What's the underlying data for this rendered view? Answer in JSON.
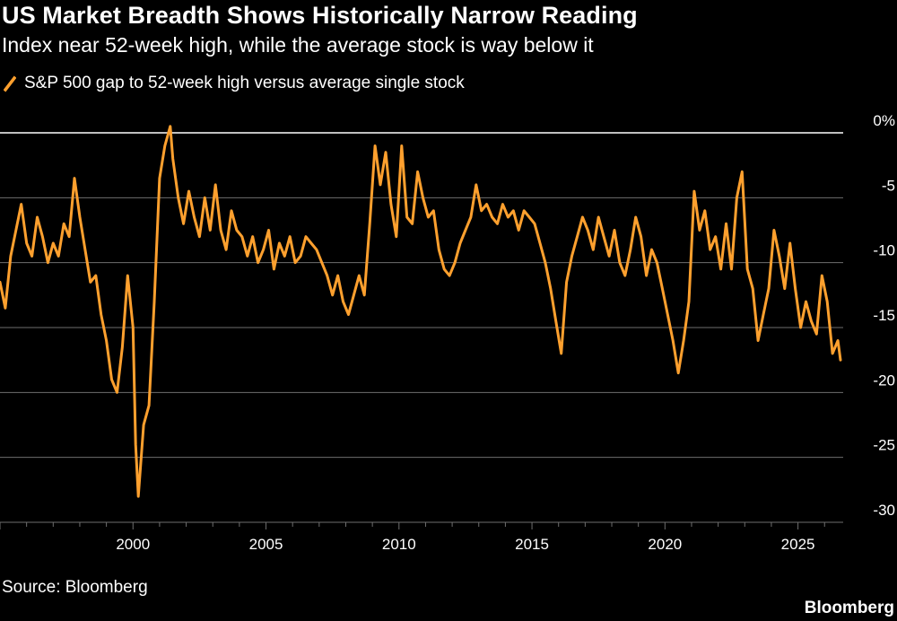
{
  "header": {
    "title": "US Market Breadth Shows Historically Narrow Reading",
    "subtitle": "Index near 52-week high, while the average stock is way below it"
  },
  "legend": {
    "label": "S&P 500 gap to 52-week high versus average single stock"
  },
  "footer": {
    "source": "Source: Bloomberg",
    "brand": "Bloomberg"
  },
  "colors": {
    "background": "#000000",
    "series": "#fea02e",
    "grid": "#6e6e6e",
    "zero_line": "#ffffff",
    "text": "#ffffff"
  },
  "chart_data": {
    "type": "line",
    "title": "US Market Breadth Shows Historically Narrow Reading",
    "subtitle": "Index near 52-week high, while the average stock is way below it",
    "xlabel": "",
    "ylabel": "",
    "xlim": [
      1995,
      2026.7
    ],
    "ylim": [
      -30,
      0
    ],
    "x_ticks": [
      2000,
      2005,
      2010,
      2015,
      2020,
      2025
    ],
    "x_tick_labels": [
      "2000",
      "2005",
      "2010",
      "2015",
      "2020",
      "2025"
    ],
    "y_ticks": [
      0,
      -5,
      -10,
      -15,
      -20,
      -25,
      -30
    ],
    "y_tick_labels": [
      "0%",
      "-5",
      "-10",
      "-15",
      "-20",
      "-25",
      "-30"
    ],
    "grid": "horizontal",
    "legend_position": "top-left",
    "series": [
      {
        "name": "S&P 500 gap to 52-week high versus average single stock",
        "x": [
          1995.0,
          1995.2,
          1995.4,
          1995.6,
          1995.8,
          1996.0,
          1996.2,
          1996.4,
          1996.6,
          1996.8,
          1997.0,
          1997.2,
          1997.4,
          1997.6,
          1997.8,
          1998.0,
          1998.2,
          1998.4,
          1998.6,
          1998.8,
          1999.0,
          1999.2,
          1999.4,
          1999.6,
          1999.8,
          2000.0,
          2000.1,
          2000.2,
          2000.4,
          2000.6,
          2000.8,
          2001.0,
          2001.2,
          2001.4,
          2001.5,
          2001.7,
          2001.9,
          2002.1,
          2002.3,
          2002.5,
          2002.7,
          2002.9,
          2003.1,
          2003.3,
          2003.5,
          2003.7,
          2003.9,
          2004.1,
          2004.3,
          2004.5,
          2004.7,
          2004.9,
          2005.1,
          2005.3,
          2005.5,
          2005.7,
          2005.9,
          2006.1,
          2006.3,
          2006.5,
          2006.7,
          2006.9,
          2007.1,
          2007.3,
          2007.5,
          2007.7,
          2007.9,
          2008.1,
          2008.3,
          2008.5,
          2008.7,
          2008.9,
          2009.1,
          2009.3,
          2009.5,
          2009.7,
          2009.9,
          2010.1,
          2010.3,
          2010.5,
          2010.7,
          2010.9,
          2011.1,
          2011.3,
          2011.5,
          2011.7,
          2011.9,
          2012.1,
          2012.3,
          2012.5,
          2012.7,
          2012.9,
          2013.1,
          2013.3,
          2013.5,
          2013.7,
          2013.9,
          2014.1,
          2014.3,
          2014.5,
          2014.7,
          2014.9,
          2015.1,
          2015.3,
          2015.5,
          2015.7,
          2015.9,
          2016.1,
          2016.3,
          2016.5,
          2016.7,
          2016.9,
          2017.1,
          2017.3,
          2017.5,
          2017.7,
          2017.9,
          2018.1,
          2018.3,
          2018.5,
          2018.7,
          2018.9,
          2019.1,
          2019.3,
          2019.5,
          2019.7,
          2019.9,
          2020.1,
          2020.3,
          2020.5,
          2020.7,
          2020.9,
          2021.1,
          2021.3,
          2021.5,
          2021.7,
          2021.9,
          2022.1,
          2022.3,
          2022.5,
          2022.7,
          2022.9,
          2023.1,
          2023.3,
          2023.5,
          2023.7,
          2023.9,
          2024.1,
          2024.3,
          2024.5,
          2024.7,
          2024.9,
          2025.1,
          2025.3,
          2025.5,
          2025.7,
          2025.9,
          2026.1,
          2026.3,
          2026.5,
          2026.6
        ],
        "y": [
          -11.5,
          -13.5,
          -9.5,
          -7.5,
          -5.5,
          -8.5,
          -9.5,
          -6.5,
          -8.0,
          -10.0,
          -8.5,
          -9.5,
          -7.0,
          -8.0,
          -3.5,
          -6.5,
          -9.0,
          -11.5,
          -11.0,
          -14.0,
          -16.0,
          -19.0,
          -20.0,
          -16.5,
          -11.0,
          -15.0,
          -24.0,
          -28.0,
          -22.5,
          -21.0,
          -13.0,
          -3.5,
          -1.0,
          0.5,
          -2.0,
          -5.0,
          -7.0,
          -4.5,
          -6.5,
          -8.0,
          -5.0,
          -7.5,
          -4.0,
          -7.5,
          -9.0,
          -6.0,
          -7.5,
          -8.0,
          -9.5,
          -8.0,
          -10.0,
          -9.0,
          -7.5,
          -10.5,
          -8.5,
          -9.5,
          -8.0,
          -10.0,
          -9.5,
          -8.0,
          -8.5,
          -9.0,
          -10.0,
          -11.0,
          -12.5,
          -11.0,
          -13.0,
          -14.0,
          -12.5,
          -11.0,
          -12.5,
          -7.0,
          -1.0,
          -4.0,
          -1.5,
          -5.5,
          -8.0,
          -1.0,
          -6.5,
          -7.0,
          -3.0,
          -5.0,
          -6.5,
          -6.0,
          -9.0,
          -10.5,
          -11.0,
          -10.0,
          -8.5,
          -7.5,
          -6.5,
          -4.0,
          -6.0,
          -5.5,
          -6.5,
          -7.0,
          -5.5,
          -6.5,
          -6.0,
          -7.5,
          -6.0,
          -6.5,
          -7.0,
          -8.5,
          -10.0,
          -12.0,
          -14.5,
          -17.0,
          -11.5,
          -9.5,
          -8.0,
          -6.5,
          -7.5,
          -9.0,
          -6.5,
          -8.0,
          -9.5,
          -7.5,
          -10.0,
          -11.0,
          -9.0,
          -6.5,
          -8.0,
          -11.0,
          -9.0,
          -10.0,
          -12.0,
          -14.0,
          -16.0,
          -18.5,
          -16.0,
          -13.0,
          -4.5,
          -7.5,
          -6.0,
          -9.0,
          -8.0,
          -10.5,
          -7.0,
          -10.5,
          -5.0,
          -3.0,
          -10.5,
          -12.0,
          -16.0,
          -14.0,
          -12.0,
          -7.5,
          -9.5,
          -12.0,
          -8.5,
          -12.0,
          -15.0,
          -13.0,
          -14.5,
          -15.5,
          -11.0,
          -13.0,
          -17.0,
          -16.0,
          -17.5
        ]
      }
    ]
  }
}
